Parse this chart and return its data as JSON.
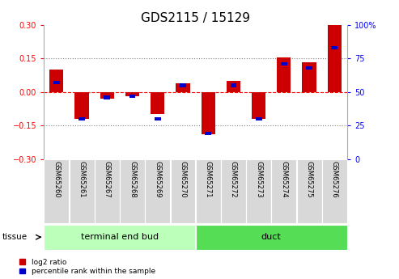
{
  "title": "GDS2115 / 15129",
  "samples": [
    "GSM65260",
    "GSM65261",
    "GSM65267",
    "GSM65268",
    "GSM65269",
    "GSM65270",
    "GSM65271",
    "GSM65272",
    "GSM65273",
    "GSM65274",
    "GSM65275",
    "GSM65276"
  ],
  "log2_ratio": [
    0.1,
    -0.12,
    -0.03,
    -0.02,
    -0.1,
    0.04,
    -0.19,
    0.05,
    -0.12,
    0.155,
    0.135,
    0.3
  ],
  "percentile_rank": [
    57,
    30,
    46,
    47,
    30,
    55,
    19,
    55,
    30,
    71,
    68,
    83
  ],
  "tissue_groups": [
    {
      "label": "terminal end bud",
      "start": 0,
      "end": 6,
      "color": "#bbffbb"
    },
    {
      "label": "duct",
      "start": 6,
      "end": 12,
      "color": "#55dd55"
    }
  ],
  "ylim": [
    -0.3,
    0.3
  ],
  "yticks_left": [
    -0.3,
    -0.15,
    0.0,
    0.15,
    0.3
  ],
  "yticks_right": [
    0,
    25,
    50,
    75,
    100
  ],
  "hlines_dotted": [
    -0.15,
    0.15
  ],
  "bar_color_red": "#cc0000",
  "bar_color_blue": "#0000cc",
  "bar_width": 0.55,
  "percentile_bar_width": 0.25,
  "percentile_bar_height": 0.016,
  "background_color": "#ffffff",
  "title_fontsize": 11,
  "tick_fontsize": 7,
  "label_fontsize": 7
}
